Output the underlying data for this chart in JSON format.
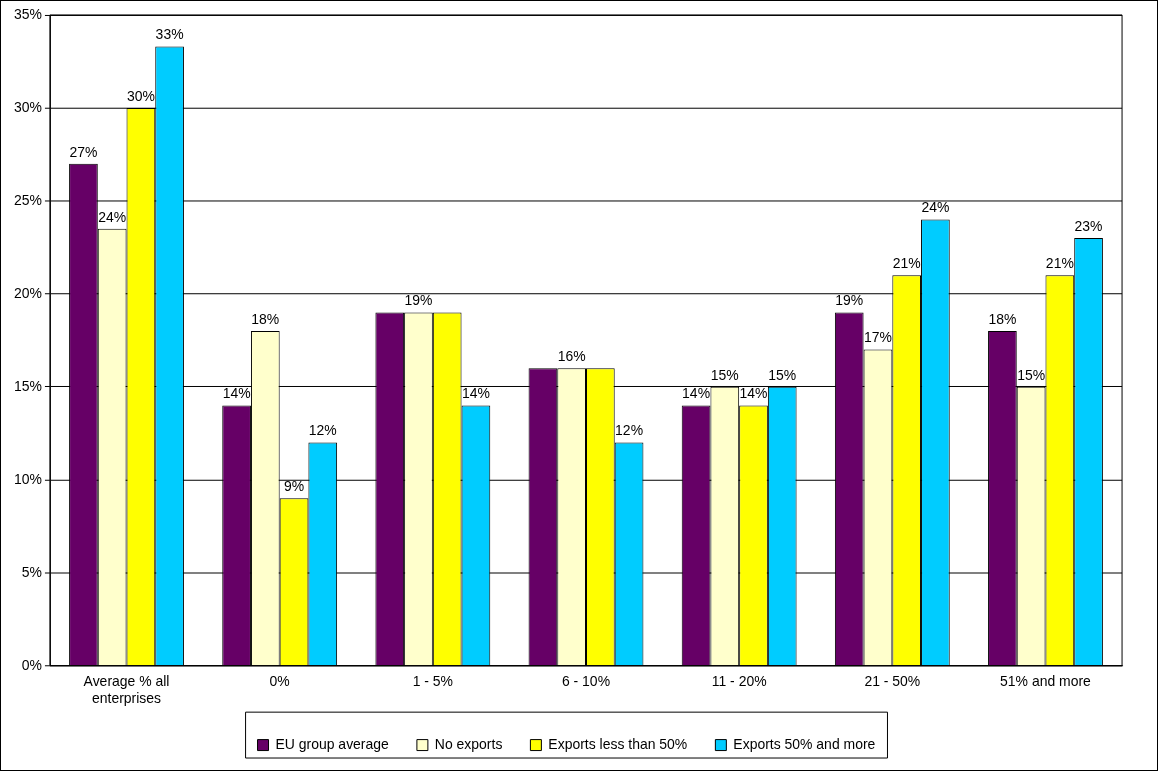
{
  "chart_data": {
    "type": "bar",
    "categories": [
      "Average % all enterprises",
      "0%",
      "1 - 5%",
      "6 - 10%",
      "11 - 20%",
      "21 - 50%",
      "51% and more"
    ],
    "series": [
      {
        "name": "EU group average",
        "color": "#660066",
        "values": [
          27,
          14,
          19,
          16,
          14,
          19,
          18
        ],
        "value_labels": [
          "27%",
          "14%",
          null,
          null,
          "14%",
          "19%",
          "18%"
        ]
      },
      {
        "name": "No exports",
        "color": "#ffffcc",
        "values": [
          23.5,
          18,
          19,
          16,
          15,
          17,
          15
        ],
        "value_labels": [
          "24%",
          "18%",
          "19%",
          "16%",
          "15%",
          "17%",
          "15%"
        ]
      },
      {
        "name": "Exports less than 50%",
        "color": "#ffff00",
        "values": [
          30,
          9,
          19,
          16,
          14,
          21,
          21
        ],
        "value_labels": [
          "30%",
          "9%",
          null,
          null,
          "14%",
          "21%",
          "21%"
        ]
      },
      {
        "name": "Exports 50% and more",
        "color": "#00ccff",
        "values": [
          33.3,
          12,
          14,
          12,
          15,
          24,
          23
        ],
        "value_labels": [
          "33%",
          "12%",
          "14%",
          "12%",
          "15%",
          "24%",
          "23%"
        ]
      }
    ],
    "ylim": [
      0,
      35
    ],
    "yticks": [
      {
        "value": 0,
        "label": "0%"
      },
      {
        "value": 5,
        "label": "5%"
      },
      {
        "value": 10,
        "label": "10%"
      },
      {
        "value": 15,
        "label": "15%"
      },
      {
        "value": 20,
        "label": "20%"
      },
      {
        "value": 25,
        "label": "25%"
      },
      {
        "value": 30,
        "label": "30%"
      },
      {
        "value": 35,
        "label": "35%"
      }
    ],
    "grid": "y",
    "legend": "bottom"
  }
}
